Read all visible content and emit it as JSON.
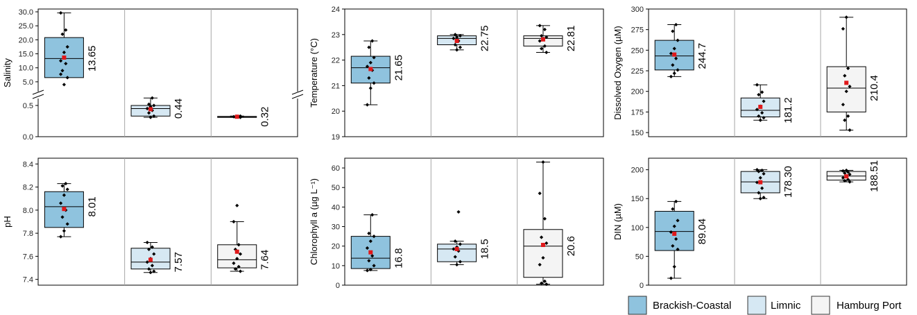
{
  "legend": {
    "items": [
      {
        "label": "Brackish-Coastal",
        "color": "#8fc3de"
      },
      {
        "label": "Limnic",
        "color": "#d6e8f3"
      },
      {
        "label": "Hamburg Port",
        "color": "#f4f4f4"
      }
    ]
  },
  "colors": {
    "mean_marker": "#e0191b",
    "point": "#000000",
    "divider": "#a6a6a6"
  },
  "chart_data": [
    {
      "type": "box",
      "ylabel": "Salinity",
      "axis_break": true,
      "ylim_lower": [
        0,
        0.6
      ],
      "ylim_upper": [
        2,
        31
      ],
      "yticks_lower": [
        "0.0",
        "0.5"
      ],
      "yticks_upper": [
        "5.0",
        "10.0",
        "15.0",
        "20.0",
        "25.0",
        "30.0"
      ],
      "groups": [
        {
          "name": "Brackish-Coastal",
          "min": 1.0,
          "q1": 6.5,
          "median": 13.3,
          "q3": 20.8,
          "max": 29.6,
          "mean": 13.65,
          "label": "13.65",
          "points": [
            1.0,
            4.0,
            6.5,
            9.0,
            11.5,
            12.5,
            15.5,
            17.5,
            22.0,
            23.5,
            29.6
          ]
        },
        {
          "name": "Limnic",
          "min": 0.31,
          "q1": 0.33,
          "median": 0.45,
          "q3": 0.5,
          "max": 0.62,
          "mean": 0.44,
          "label": "0.44",
          "points": [
            0.31,
            0.33,
            0.38,
            0.42,
            0.45,
            0.48,
            0.5,
            0.52,
            0.62
          ]
        },
        {
          "name": "Hamburg Port",
          "min": 0.31,
          "q1": 0.315,
          "median": 0.32,
          "q3": 0.325,
          "max": 0.33,
          "mean": 0.32,
          "label": "0.32",
          "points": [
            0.31,
            0.315,
            0.32,
            0.32,
            0.325,
            0.33
          ]
        }
      ]
    },
    {
      "type": "box",
      "ylabel": "Temperature (°C)",
      "ylim": [
        19,
        24
      ],
      "yticks": [
        "19",
        "20",
        "21",
        "22",
        "23",
        "24"
      ],
      "groups": [
        {
          "name": "Brackish-Coastal",
          "min": 20.25,
          "q1": 21.1,
          "median": 21.7,
          "q3": 22.15,
          "max": 22.75,
          "mean": 21.65,
          "label": "21.65",
          "points": [
            20.25,
            20.9,
            21.1,
            21.3,
            21.6,
            21.75,
            21.9,
            22.1,
            22.5,
            22.75
          ]
        },
        {
          "name": "Limnic",
          "min": 22.4,
          "q1": 22.6,
          "median": 22.85,
          "q3": 22.95,
          "max": 23.0,
          "mean": 22.75,
          "label": "22.75",
          "points": [
            22.4,
            22.5,
            22.6,
            22.75,
            22.85,
            22.9,
            22.95,
            23.0
          ]
        },
        {
          "name": "Hamburg Port",
          "min": 22.3,
          "q1": 22.55,
          "median": 22.85,
          "q3": 22.95,
          "max": 23.35,
          "mean": 22.81,
          "label": "22.81",
          "points": [
            22.3,
            22.45,
            22.55,
            22.75,
            22.85,
            22.9,
            22.95,
            23.2,
            23.35
          ]
        }
      ]
    },
    {
      "type": "box",
      "ylabel": "Dissolved Oxygen (µM)",
      "ylim": [
        145,
        300
      ],
      "yticks": [
        "150",
        "175",
        "200",
        "225",
        "250",
        "275",
        "300"
      ],
      "groups": [
        {
          "name": "Brackish-Coastal",
          "min": 218,
          "q1": 226,
          "median": 243,
          "q3": 262,
          "max": 281,
          "mean": 244.7,
          "label": "244.7",
          "points": [
            218,
            222,
            226,
            232,
            240,
            246,
            252,
            262,
            273,
            281
          ]
        },
        {
          "name": "Limnic",
          "min": 165,
          "q1": 169,
          "median": 177,
          "q3": 192,
          "max": 208,
          "mean": 181.2,
          "label": "181.2",
          "points": [
            165,
            168,
            170,
            174,
            178,
            182,
            188,
            196,
            199,
            208
          ]
        },
        {
          "name": "Hamburg Port",
          "min": 153,
          "q1": 175,
          "median": 204,
          "q3": 230,
          "max": 290,
          "mean": 210.4,
          "label": "210.4",
          "points": [
            153,
            165,
            170,
            184,
            200,
            206,
            219,
            228,
            276,
            290
          ]
        }
      ]
    },
    {
      "type": "box",
      "ylabel": "pH",
      "ylim": [
        7.35,
        8.45
      ],
      "yticks": [
        "7.4",
        "7.6",
        "7.8",
        "8.0",
        "8.2",
        "8.4"
      ],
      "groups": [
        {
          "name": "Brackish-Coastal",
          "min": 7.77,
          "q1": 7.85,
          "median": 8.03,
          "q3": 8.16,
          "max": 8.23,
          "mean": 8.01,
          "label": "8.01",
          "points": [
            7.77,
            7.82,
            7.88,
            7.94,
            8.0,
            8.06,
            8.13,
            8.18,
            8.21,
            8.23
          ]
        },
        {
          "name": "Limnic",
          "min": 7.46,
          "q1": 7.49,
          "median": 7.55,
          "q3": 7.67,
          "max": 7.72,
          "mean": 7.57,
          "label": "7.57",
          "points": [
            7.46,
            7.47,
            7.49,
            7.52,
            7.55,
            7.58,
            7.62,
            7.66,
            7.68,
            7.72
          ]
        },
        {
          "name": "Hamburg Port",
          "min": 7.47,
          "q1": 7.5,
          "median": 7.57,
          "q3": 7.7,
          "max": 7.9,
          "mean": 7.64,
          "label": "7.64",
          "points": [
            7.47,
            7.49,
            7.51,
            7.54,
            7.58,
            7.62,
            7.66,
            7.7,
            7.9,
            8.04
          ]
        }
      ]
    },
    {
      "type": "box",
      "ylabel": "Chlorophyll a (µg L⁻¹)",
      "ylim": [
        0,
        65
      ],
      "yticks": [
        "0",
        "10",
        "20",
        "30",
        "40",
        "50",
        "60"
      ],
      "groups": [
        {
          "name": "Brackish-Coastal",
          "min": 7.5,
          "q1": 8.5,
          "median": 13.8,
          "q3": 25.0,
          "max": 36.0,
          "mean": 16.8,
          "label": "16.8",
          "points": [
            7.5,
            8.0,
            10.0,
            12.5,
            15.0,
            19.0,
            22.5,
            25.0,
            26.5,
            36.0
          ]
        },
        {
          "name": "Limnic",
          "min": 10.5,
          "q1": 12.0,
          "median": 18.5,
          "q3": 21.0,
          "max": 22.5,
          "mean": 18.5,
          "label": "18.5",
          "points": [
            10.5,
            12.0,
            14.5,
            17.5,
            18.5,
            19.5,
            21.0,
            22.5,
            37.5
          ]
        },
        {
          "name": "Hamburg Port",
          "min": 0.5,
          "q1": 4.0,
          "median": 20.0,
          "q3": 28.5,
          "max": 63.0,
          "mean": 20.6,
          "label": "20.6",
          "points": [
            0.5,
            1.0,
            2.0,
            10.5,
            14.0,
            21.5,
            24.5,
            34.0,
            47.0,
            63.0
          ]
        }
      ]
    },
    {
      "type": "box",
      "ylabel": "DIN (µM)",
      "ylim": [
        0,
        220
      ],
      "yticks": [
        "0",
        "50",
        "100",
        "150",
        "200"
      ],
      "groups": [
        {
          "name": "Brackish-Coastal",
          "min": 12,
          "q1": 60,
          "median": 93,
          "q3": 128,
          "max": 145,
          "mean": 89.04,
          "label": "89.04",
          "points": [
            12,
            32,
            62,
            68,
            80,
            92,
            102,
            112,
            132,
            145
          ]
        },
        {
          "name": "Limnic",
          "min": 150,
          "q1": 160,
          "median": 179,
          "q3": 197,
          "max": 200,
          "mean": 178.3,
          "label": "178.30",
          "points": [
            150,
            152,
            160,
            168,
            178,
            186,
            193,
            197,
            199,
            200
          ]
        },
        {
          "name": "Hamburg Port",
          "min": 179,
          "q1": 182,
          "median": 189,
          "q3": 197,
          "max": 199,
          "mean": 188.51,
          "label": "188.51",
          "points": [
            179,
            181,
            183,
            186,
            189,
            192,
            194,
            196,
            198,
            199
          ]
        }
      ]
    }
  ]
}
